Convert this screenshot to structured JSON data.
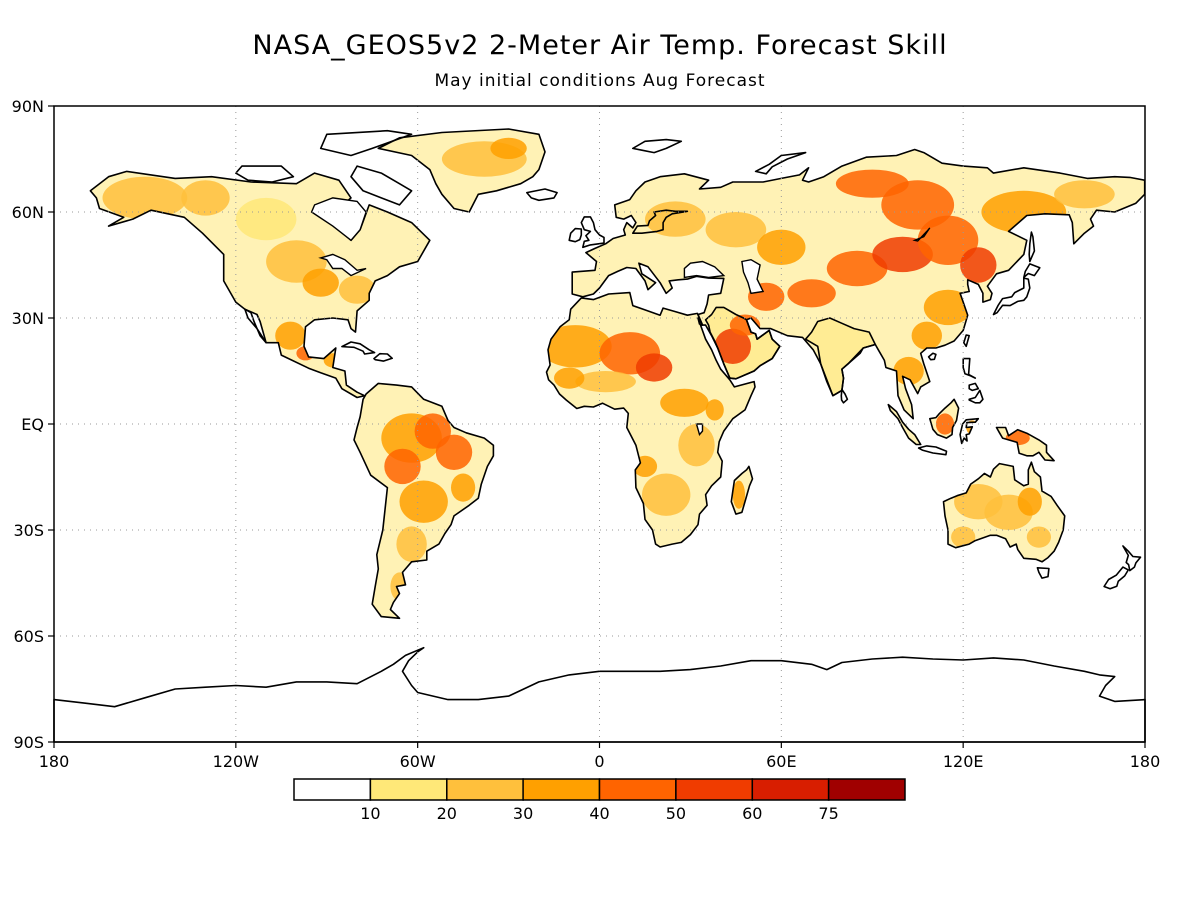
{
  "title": "NASA_GEOS5v2 2-Meter Air Temp. Forecast Skill",
  "subtitle": "May initial conditions  Aug Forecast",
  "map": {
    "lon_range": [
      -180,
      180
    ],
    "lat_range": [
      -90,
      90
    ],
    "grid": true,
    "lat_labels": [
      {
        "lat": 90,
        "label": "90N"
      },
      {
        "lat": 60,
        "label": "60N"
      },
      {
        "lat": 30,
        "label": "30N"
      },
      {
        "lat": 0,
        "label": "EQ"
      },
      {
        "lat": -30,
        "label": "30S"
      },
      {
        "lat": -60,
        "label": "60S"
      },
      {
        "lat": -90,
        "label": "90S"
      }
    ],
    "lon_labels": [
      {
        "lon": -180,
        "label": "180"
      },
      {
        "lon": -120,
        "label": "120W"
      },
      {
        "lon": -60,
        "label": "60W"
      },
      {
        "lon": 0,
        "label": "0"
      },
      {
        "lon": 60,
        "label": "60E"
      },
      {
        "lon": 120,
        "label": "120E"
      },
      {
        "lon": 180,
        "label": "180"
      }
    ]
  },
  "colorbar": {
    "colors": [
      "#ffffff",
      "#ffe878",
      "#ffc03c",
      "#ffa000",
      "#ff6400",
      "#f03c00",
      "#d81e00",
      "#a00000"
    ],
    "labels": [
      "10",
      "20",
      "30",
      "40",
      "50",
      "60",
      "75"
    ]
  },
  "colors": {
    "land_outline": "#000000",
    "grid": "#999999"
  }
}
